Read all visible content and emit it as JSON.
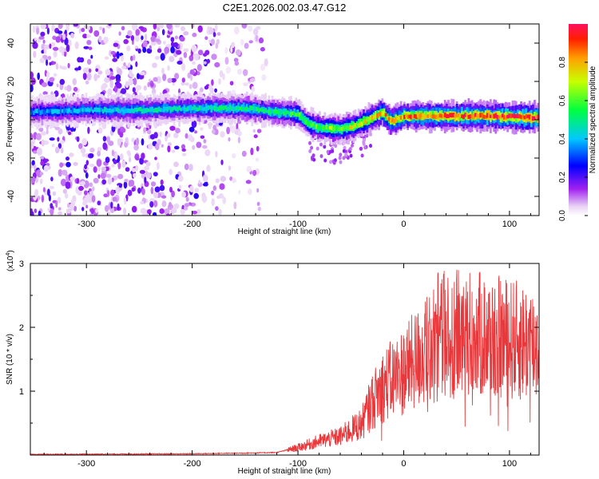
{
  "title": "C2E1.2026.002.03.47.G12",
  "chart_data": [
    {
      "type": "heatmap",
      "xlabel": "Height of straight line (km)",
      "ylabel": "Frequency (Hz)",
      "xlim": [
        -353,
        128
      ],
      "ylim": [
        -50,
        50
      ],
      "x_ticks": [
        -300,
        -200,
        -100,
        0,
        100
      ],
      "y_ticks": [
        -40,
        -20,
        0,
        20,
        40
      ],
      "colorbar": {
        "label": "Normalized spectral amplitude",
        "range": [
          0,
          1
        ],
        "ticks": [
          0.0,
          0.2,
          0.4,
          0.6,
          0.8
        ]
      },
      "signal_track": [
        {
          "x": -353,
          "freq": 4,
          "amp": 0.35
        },
        {
          "x": -300,
          "freq": 5,
          "amp": 0.4
        },
        {
          "x": -250,
          "freq": 5,
          "amp": 0.45
        },
        {
          "x": -200,
          "freq": 6,
          "amp": 0.45
        },
        {
          "x": -150,
          "freq": 6,
          "amp": 0.5
        },
        {
          "x": -120,
          "freq": 4,
          "amp": 0.5
        },
        {
          "x": -100,
          "freq": 3,
          "amp": 0.55
        },
        {
          "x": -90,
          "freq": -2,
          "amp": 0.55
        },
        {
          "x": -80,
          "freq": -4,
          "amp": 0.6
        },
        {
          "x": -60,
          "freq": -5,
          "amp": 0.65
        },
        {
          "x": -45,
          "freq": -3,
          "amp": 0.7
        },
        {
          "x": -30,
          "freq": 1,
          "amp": 0.75
        },
        {
          "x": -20,
          "freq": 4,
          "amp": 0.78
        },
        {
          "x": -12,
          "freq": -1,
          "amp": 0.8
        },
        {
          "x": 0,
          "freq": 2,
          "amp": 0.85
        },
        {
          "x": 40,
          "freq": 2,
          "amp": 0.9
        },
        {
          "x": 80,
          "freq": 2,
          "amp": 0.92
        },
        {
          "x": 128,
          "freq": 1,
          "amp": 0.95
        }
      ]
    },
    {
      "type": "line",
      "xlabel": "Height of straight line (km)",
      "ylabel": "SNR (10 * v/v)",
      "y_multiplier": "(x10",
      "y_multiplier_exp": "4",
      "y_multiplier_close": ")",
      "xlim": [
        -353,
        128
      ],
      "ylim": [
        0,
        3
      ],
      "x_ticks": [
        -300,
        -200,
        -100,
        0,
        100
      ],
      "y_ticks": [
        1,
        2,
        3
      ],
      "color": "#e8383b",
      "envelope": [
        {
          "x": -353,
          "y": 0.01
        },
        {
          "x": -200,
          "y": 0.02
        },
        {
          "x": -150,
          "y": 0.03
        },
        {
          "x": -120,
          "y": 0.04
        },
        {
          "x": -100,
          "y": 0.12
        },
        {
          "x": -80,
          "y": 0.22
        },
        {
          "x": -60,
          "y": 0.3
        },
        {
          "x": -40,
          "y": 0.5
        },
        {
          "x": -30,
          "y": 0.85
        },
        {
          "x": -20,
          "y": 1.1
        },
        {
          "x": 0,
          "y": 1.35
        },
        {
          "x": 20,
          "y": 1.65
        },
        {
          "x": 40,
          "y": 1.95
        },
        {
          "x": 60,
          "y": 1.95
        },
        {
          "x": 80,
          "y": 1.9
        },
        {
          "x": 100,
          "y": 1.85
        },
        {
          "x": 120,
          "y": 1.8
        },
        {
          "x": 128,
          "y": 1.75
        }
      ]
    }
  ]
}
